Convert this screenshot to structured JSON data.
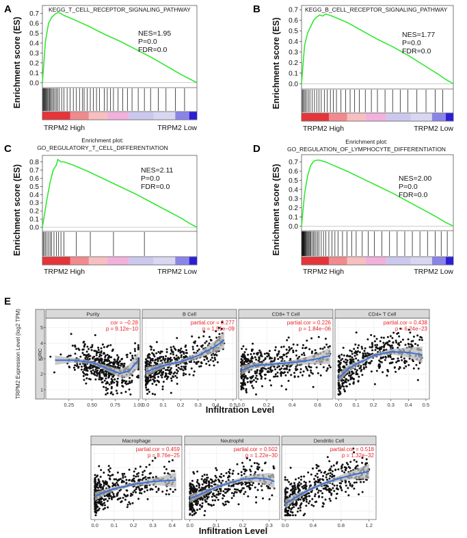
{
  "colors": {
    "es_curve": "#2ee82e",
    "loess": "#3a6fd8",
    "ribbon": "#b8b8b8",
    "stat_red": "#e8262b",
    "point": "#111111",
    "strip_bg": "#d9d9d9",
    "panel_border": "#333333",
    "grid": "#ebebeb",
    "heat_red": "#e32a2f",
    "heat_pink": "#f0a8d8",
    "heat_lilac": "#c9c5ec",
    "heat_blue": "#2b1fd6"
  },
  "chart_data": [
    {
      "id": "A",
      "type": "line",
      "panel_letter": "A",
      "title_lines": [
        "KEGG_T_CELL_RECEPTOR_SIGNALING_PATHWAY"
      ],
      "ylabel": "Enrichment score (ES)",
      "ylim": [
        -0.05,
        0.78
      ],
      "yticks": [
        "0.0",
        "0.1",
        "0.2",
        "0.3",
        "0.4",
        "0.5",
        "0.6",
        "0.7"
      ],
      "stats": [
        "NES=1.95",
        "P=0.0",
        "FDR=0.0"
      ],
      "x": [
        0,
        0.02,
        0.04,
        0.06,
        0.08,
        0.1,
        0.12,
        0.14,
        0.2,
        0.3,
        0.4,
        0.5,
        0.6,
        0.7,
        0.8,
        0.9,
        0.95,
        1.0
      ],
      "y": [
        0,
        0.42,
        0.6,
        0.66,
        0.69,
        0.71,
        0.7,
        0.68,
        0.64,
        0.57,
        0.49,
        0.42,
        0.34,
        0.26,
        0.17,
        0.08,
        0.04,
        0
      ],
      "hits": [
        0.004,
        0.008,
        0.012,
        0.016,
        0.02,
        0.025,
        0.03,
        0.035,
        0.04,
        0.046,
        0.052,
        0.058,
        0.066,
        0.074,
        0.082,
        0.09,
        0.1,
        0.11,
        0.125,
        0.14,
        0.16,
        0.18,
        0.2,
        0.22,
        0.24,
        0.26,
        0.27,
        0.29,
        0.31,
        0.33,
        0.35,
        0.37,
        0.4,
        0.42,
        0.44,
        0.46,
        0.49,
        0.52,
        0.55,
        0.58,
        0.62,
        0.66,
        0.7,
        0.75,
        0.8,
        0.86,
        0.92
      ],
      "xlabel_left": "TRPM2 High",
      "xlabel_right": "TRPM2 Low"
    },
    {
      "id": "B",
      "type": "line",
      "panel_letter": "B",
      "title_lines": [
        "KEGG_B_CELL_RECEPTOR_SIGNALING_PATHWAY"
      ],
      "ylabel": "Enrichment score (ES)",
      "ylim": [
        -0.05,
        0.74
      ],
      "yticks": [
        "0.0",
        "0.1",
        "0.2",
        "0.3",
        "0.4",
        "0.5",
        "0.6",
        "0.7"
      ],
      "stats": [
        "NES=1.77",
        "P=0.0",
        "FDR=0.0"
      ],
      "x": [
        0,
        0.02,
        0.04,
        0.06,
        0.08,
        0.1,
        0.12,
        0.14,
        0.16,
        0.2,
        0.3,
        0.4,
        0.5,
        0.6,
        0.7,
        0.8,
        0.9,
        0.95,
        1.0
      ],
      "y": [
        0,
        0.36,
        0.48,
        0.54,
        0.6,
        0.63,
        0.65,
        0.64,
        0.66,
        0.64,
        0.58,
        0.5,
        0.42,
        0.35,
        0.27,
        0.18,
        0.09,
        0.04,
        0
      ],
      "hits": [
        0.005,
        0.01,
        0.018,
        0.025,
        0.035,
        0.045,
        0.055,
        0.07,
        0.085,
        0.1,
        0.115,
        0.13,
        0.15,
        0.17,
        0.19,
        0.21,
        0.23,
        0.26,
        0.29,
        0.32,
        0.35,
        0.38,
        0.42,
        0.46,
        0.5,
        0.55,
        0.6,
        0.65,
        0.7,
        0.76,
        0.82,
        0.88,
        0.93
      ],
      "xlabel_left": "TRPM2 High",
      "xlabel_right": "TRPM2 Low"
    },
    {
      "id": "C",
      "type": "line",
      "panel_letter": "C",
      "title_lines": [
        "Enrichment plot:",
        "GO_REGULATORY_T_CELL_DIFFERENTIATION"
      ],
      "ylabel": "Enrichment score (ES)",
      "ylim": [
        -0.05,
        0.88
      ],
      "yticks": [
        "0.0",
        "0.1",
        "0.2",
        "0.3",
        "0.4",
        "0.5",
        "0.6",
        "0.7",
        "0.8"
      ],
      "stats": [
        "NES=2.11",
        "P=0.0",
        "FDR=0.0"
      ],
      "x": [
        0,
        0.03,
        0.05,
        0.07,
        0.09,
        0.1,
        0.12,
        0.14,
        0.2,
        0.3,
        0.4,
        0.5,
        0.6,
        0.7,
        0.8,
        0.9,
        0.95,
        1.0
      ],
      "y": [
        0,
        0.35,
        0.55,
        0.7,
        0.76,
        0.83,
        0.8,
        0.8,
        0.76,
        0.68,
        0.59,
        0.5,
        0.41,
        0.31,
        0.21,
        0.11,
        0.05,
        0
      ],
      "hits": [
        0.005,
        0.012,
        0.02,
        0.03,
        0.04,
        0.05,
        0.06,
        0.075,
        0.09,
        0.105,
        0.12,
        0.14,
        0.22,
        0.31,
        0.46,
        0.66
      ],
      "xlabel_left": "TRPM2 High",
      "xlabel_right": "TRPM2 Low"
    },
    {
      "id": "D",
      "type": "line",
      "panel_letter": "D",
      "title_lines": [
        "Enrichment plot:",
        "GO_REGULATION_OF_LYMPHOCYTE_DIFFERENTIATION"
      ],
      "ylabel": "Enrichment score (ES)",
      "ylim": [
        -0.05,
        0.78
      ],
      "yticks": [
        "0.0",
        "0.1",
        "0.2",
        "0.3",
        "0.4",
        "0.5",
        "0.6",
        "0.7"
      ],
      "stats": [
        "NES=2.00",
        "P=0.0",
        "FDR=0.0"
      ],
      "x": [
        0,
        0.02,
        0.04,
        0.06,
        0.08,
        0.1,
        0.12,
        0.16,
        0.2,
        0.3,
        0.4,
        0.5,
        0.6,
        0.7,
        0.8,
        0.9,
        0.95,
        1.0
      ],
      "y": [
        0,
        0.35,
        0.55,
        0.66,
        0.71,
        0.72,
        0.72,
        0.7,
        0.67,
        0.6,
        0.52,
        0.44,
        0.36,
        0.27,
        0.18,
        0.09,
        0.04,
        0
      ],
      "hits": [
        0.003,
        0.006,
        0.009,
        0.012,
        0.015,
        0.018,
        0.022,
        0.026,
        0.03,
        0.035,
        0.04,
        0.045,
        0.05,
        0.056,
        0.062,
        0.07,
        0.078,
        0.086,
        0.095,
        0.105,
        0.115,
        0.13,
        0.145,
        0.16,
        0.18,
        0.2,
        0.22,
        0.24,
        0.27,
        0.3,
        0.33,
        0.36,
        0.4,
        0.44,
        0.48,
        0.53,
        0.58,
        0.63,
        0.68,
        0.73,
        0.78,
        0.83,
        0.88,
        0.92,
        0.96
      ],
      "xlabel_left": "TRPM2 High",
      "xlabel_right": "TRPM2 Low"
    },
    {
      "id": "E",
      "type": "scatter",
      "panel_letter": "E",
      "ylabel": "TRPM2 Expression Level (log2 TPM)",
      "row_label": "KIRC",
      "xlabel": "Infiltration Level",
      "yticks": [
        1,
        2,
        3,
        4,
        5
      ],
      "ylim": [
        0.4,
        5.6
      ],
      "panels": [
        {
          "name": "Purity",
          "stat_label": "cor",
          "cor": "−0.28",
          "p": "9.12e−10",
          "xlim": [
            0.0,
            1.02
          ],
          "xticks": [
            0.25,
            0.5,
            0.75,
            1.0
          ],
          "xticklabels": [
            "0.25",
            "0.50",
            "0.75",
            "1.00"
          ],
          "xmin_pts": 0.05,
          "xmax_pts": 1.0,
          "trend_x": [
            0.1,
            0.3,
            0.5,
            0.65,
            0.8,
            0.9,
            1.0
          ],
          "trend_y": [
            2.9,
            2.9,
            2.75,
            2.4,
            2.05,
            2.2,
            2.9
          ],
          "show_y_axis": true
        },
        {
          "name": "B Cell",
          "stat_label": "partial.cor",
          "cor": "0.277",
          "p": "1.51e−09",
          "xlim": [
            -0.02,
            0.52
          ],
          "xticks": [
            0.0,
            0.1,
            0.2,
            0.3,
            0.4,
            0.5
          ],
          "xticklabels": [
            "0.0",
            "0.1",
            "0.2",
            "0.3",
            "0.4",
            "0.5"
          ],
          "xmin_pts": 0.0,
          "xmax_pts": 0.45,
          "trend_x": [
            0.0,
            0.05,
            0.1,
            0.2,
            0.3,
            0.4,
            0.45
          ],
          "trend_y": [
            2.15,
            2.35,
            2.55,
            2.8,
            3.2,
            3.8,
            4.2
          ],
          "show_y_axis": false
        },
        {
          "name": "CD8+ T Cell",
          "stat_label": "partial.cor",
          "cor": "0.226",
          "p": "1.84e−06",
          "xlim": [
            -0.02,
            0.72
          ],
          "xticks": [
            0.0,
            0.2,
            0.4,
            0.6
          ],
          "xticklabels": [
            "0.0",
            "0.2",
            "0.4",
            "0.6"
          ],
          "xmin_pts": 0.0,
          "xmax_pts": 0.7,
          "trend_x": [
            0.0,
            0.1,
            0.2,
            0.3,
            0.4,
            0.5,
            0.6,
            0.7
          ],
          "trend_y": [
            2.25,
            2.55,
            2.62,
            2.68,
            2.75,
            2.85,
            3.0,
            3.2
          ],
          "show_y_axis": false
        },
        {
          "name": "CD4+ T Cell",
          "stat_label": "partial.cor",
          "cor": "0.438",
          "p": "6.24e−23",
          "xlim": [
            -0.02,
            0.52
          ],
          "xticks": [
            0.0,
            0.1,
            0.2,
            0.3,
            0.4,
            0.5
          ],
          "xticklabels": [
            "0.0",
            "0.1",
            "0.2",
            "0.3",
            "0.4",
            "0.5"
          ],
          "xmin_pts": 0.0,
          "xmax_pts": 0.48,
          "trend_x": [
            0.0,
            0.05,
            0.1,
            0.15,
            0.2,
            0.3,
            0.4,
            0.48
          ],
          "trend_y": [
            1.75,
            2.3,
            2.65,
            2.9,
            3.2,
            3.45,
            3.4,
            3.25
          ],
          "show_y_axis": false
        },
        {
          "name": "Macrophage",
          "stat_label": "partial.cor",
          "cor": "0.459",
          "p": "8.76e−25",
          "xlim": [
            -0.02,
            0.45
          ],
          "xticks": [
            0.0,
            0.1,
            0.2,
            0.3,
            0.4
          ],
          "xticklabels": [
            "0.0",
            "0.1",
            "0.2",
            "0.3",
            "0.4"
          ],
          "xmin_pts": 0.0,
          "xmax_pts": 0.42,
          "trend_x": [
            0.0,
            0.05,
            0.1,
            0.2,
            0.3,
            0.42
          ],
          "trend_y": [
            2.0,
            2.3,
            2.55,
            2.85,
            3.05,
            3.15
          ],
          "show_y_axis": false
        },
        {
          "name": "Neutrophil",
          "stat_label": "partial.cor",
          "cor": "0.502",
          "p": "1.22e−30",
          "xlim": [
            -0.02,
            0.34
          ],
          "xticks": [
            0.0,
            0.1,
            0.2,
            0.3
          ],
          "xticklabels": [
            "0.0",
            "0.1",
            "0.2",
            "0.3"
          ],
          "xmin_pts": 0.0,
          "xmax_pts": 0.32,
          "trend_x": [
            0.0,
            0.05,
            0.1,
            0.15,
            0.2,
            0.25,
            0.3,
            0.32
          ],
          "trend_y": [
            1.85,
            2.25,
            2.65,
            2.95,
            3.2,
            3.3,
            3.2,
            3.05
          ],
          "show_y_axis": false
        },
        {
          "name": "Dendritic Cell",
          "stat_label": "partial.cor",
          "cor": "0.518",
          "p": "1.32e−32",
          "xlim": [
            -0.05,
            1.3
          ],
          "xticks": [
            0.0,
            0.4,
            0.8,
            1.2
          ],
          "xticklabels": [
            "0.0",
            "0.4",
            "0.8",
            "1.2"
          ],
          "xmin_pts": 0.0,
          "xmax_pts": 1.2,
          "trend_x": [
            0.0,
            0.2,
            0.4,
            0.6,
            0.8,
            1.0,
            1.2
          ],
          "trend_y": [
            1.5,
            2.1,
            2.6,
            3.0,
            3.3,
            3.55,
            3.75
          ],
          "show_y_axis": false
        }
      ]
    }
  ]
}
